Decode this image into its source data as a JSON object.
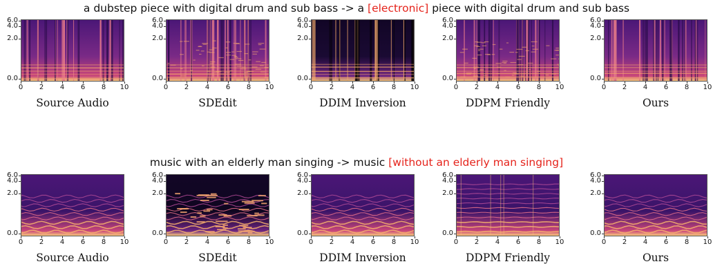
{
  "rows": [
    {
      "caption_before": "a dubstep piece with digital drum and sub bass -> a ",
      "caption_highlight": "[electronic]",
      "caption_after": " piece with digital drum and sub bass",
      "panels": [
        {
          "label": "Source Audio",
          "style": "dubstep-src"
        },
        {
          "label": "SDEdit",
          "style": "dubstep-sdedit"
        },
        {
          "label": "DDIM Inversion",
          "style": "dubstep-ddim"
        },
        {
          "label": "DDPM Friendly",
          "style": "dubstep-ddpm"
        },
        {
          "label": "Ours",
          "style": "dubstep-ours"
        }
      ]
    },
    {
      "caption_before": "music with an elderly man singing -> music ",
      "caption_highlight": "[without an elderly man singing]",
      "caption_after": "",
      "panels": [
        {
          "label": "Source Audio",
          "style": "sing-src"
        },
        {
          "label": "SDEdit",
          "style": "sing-sdedit"
        },
        {
          "label": "DDIM Inversion",
          "style": "sing-ddim"
        },
        {
          "label": "DDPM Friendly",
          "style": "sing-ddpm"
        },
        {
          "label": "Ours",
          "style": "sing-ours"
        }
      ]
    }
  ],
  "axes": {
    "y_ticks": [
      "6.0",
      "4.0",
      "2.0",
      "0.0"
    ],
    "x_ticks": [
      "0",
      "2",
      "4",
      "6",
      "8",
      "10"
    ]
  },
  "colors": {
    "highlight": "#e5231b",
    "spec_dark": "#1c0b3a",
    "spec_mid": "#9c2d7e",
    "spec_bright": "#f5a36a"
  }
}
